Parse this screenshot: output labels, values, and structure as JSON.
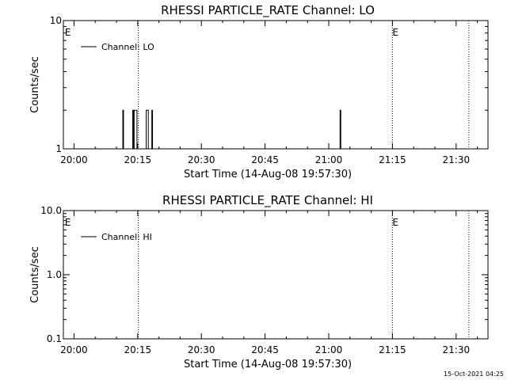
{
  "chart_data": [
    {
      "type": "line",
      "title": "RHESSI PARTICLE_RATE Channel: LO",
      "xlabel": "Start Time (14-Aug-08 19:57:30)",
      "ylabel": "Counts/sec",
      "y_scale": "log",
      "ylim": [
        1,
        10
      ],
      "y_ticks": [
        {
          "value": 1,
          "label": "1"
        },
        {
          "value": 10,
          "label": "10"
        }
      ],
      "xlim": [
        "19:57:30",
        "21:37:30"
      ],
      "x_ticks": [
        {
          "value": "20:00",
          "label": "20:00"
        },
        {
          "value": "20:15",
          "label": "20:15"
        },
        {
          "value": "20:30",
          "label": "20:30"
        },
        {
          "value": "20:45",
          "label": "20:45"
        },
        {
          "value": "21:00",
          "label": "21:00"
        },
        {
          "value": "21:15",
          "label": "21:15"
        },
        {
          "value": "21:30",
          "label": "21:30"
        }
      ],
      "legend_position": "top-left",
      "series": [
        {
          "name": "Channel: LO",
          "color": "#000000",
          "points": [
            [
              "20:00:00",
              1
            ],
            [
              "20:11:20",
              1
            ],
            [
              "20:11:30",
              2
            ],
            [
              "20:11:40",
              1
            ],
            [
              "20:13:40",
              1
            ],
            [
              "20:13:50",
              2
            ],
            [
              "20:14:00",
              1
            ],
            [
              "20:14:10",
              2
            ],
            [
              "20:14:40",
              2
            ],
            [
              "20:14:50",
              1
            ],
            [
              "20:16:50",
              1
            ],
            [
              "20:17:00",
              2
            ],
            [
              "20:17:20",
              2
            ],
            [
              "20:17:30",
              1
            ],
            [
              "20:18:10",
              1
            ],
            [
              "20:18:20",
              2
            ],
            [
              "20:18:30",
              1
            ],
            [
              "21:02:30",
              1
            ],
            [
              "21:02:40",
              2
            ],
            [
              "21:02:50",
              1
            ],
            [
              "21:36:00",
              1
            ]
          ]
        }
      ],
      "event_markers": [
        {
          "time": "19:57:40",
          "label": "E",
          "line": false
        },
        {
          "time": "20:15:10",
          "label": "",
          "line": true
        },
        {
          "time": "21:15:00",
          "label": "E",
          "line": true
        },
        {
          "time": "21:33:00",
          "label": "",
          "line": true
        }
      ],
      "grid": false
    },
    {
      "type": "line",
      "title": "RHESSI PARTICLE_RATE Channel: HI",
      "xlabel": "Start Time (14-Aug-08 19:57:30)",
      "ylabel": "Counts/sec",
      "y_scale": "log",
      "ylim": [
        0.1,
        10
      ],
      "y_ticks": [
        {
          "value": 0.1,
          "label": "0.1"
        },
        {
          "value": 1,
          "label": "1.0"
        },
        {
          "value": 10,
          "label": "10.0"
        }
      ],
      "xlim": [
        "19:57:30",
        "21:37:30"
      ],
      "x_ticks": [
        {
          "value": "20:00",
          "label": "20:00"
        },
        {
          "value": "20:15",
          "label": "20:15"
        },
        {
          "value": "20:30",
          "label": "20:30"
        },
        {
          "value": "20:45",
          "label": "20:45"
        },
        {
          "value": "21:00",
          "label": "21:00"
        },
        {
          "value": "21:15",
          "label": "21:15"
        },
        {
          "value": "21:30",
          "label": "21:30"
        }
      ],
      "legend_position": "top-left",
      "series": [
        {
          "name": "Channel: HI",
          "color": "#000000",
          "points": []
        }
      ],
      "event_markers": [
        {
          "time": "19:57:40",
          "label": "E",
          "line": false
        },
        {
          "time": "20:15:10",
          "label": "",
          "line": true
        },
        {
          "time": "21:15:00",
          "label": "E",
          "line": true
        },
        {
          "time": "21:33:00",
          "label": "",
          "line": true
        }
      ],
      "grid": false
    }
  ],
  "footer": {
    "timestamp": "15-Oct-2021 04:25"
  }
}
